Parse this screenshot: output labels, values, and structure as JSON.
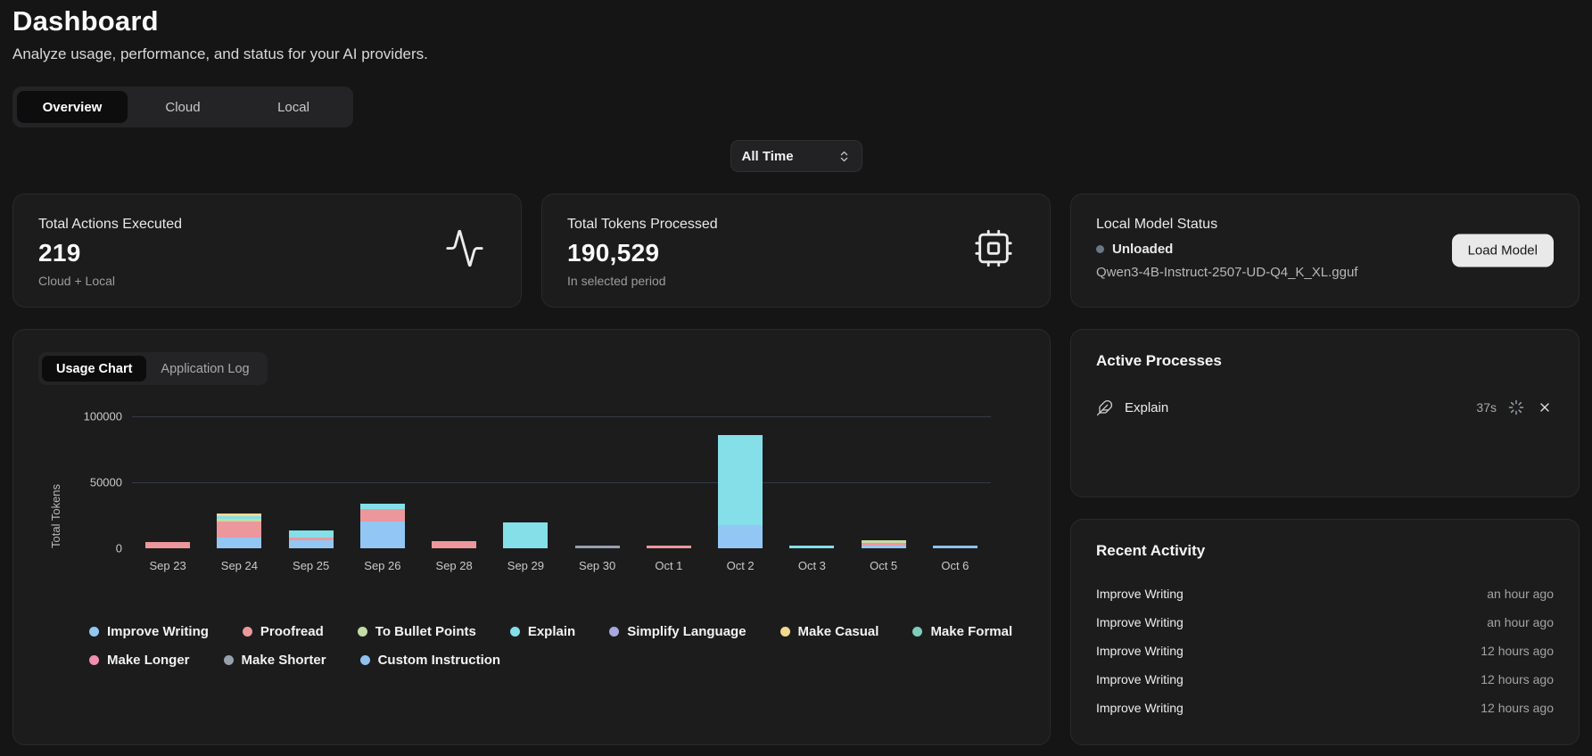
{
  "page": {
    "title": "Dashboard",
    "subtitle": "Analyze usage, performance, and status for your AI providers."
  },
  "tabs": {
    "items": [
      {
        "label": "Overview",
        "active": true
      },
      {
        "label": "Cloud",
        "active": false
      },
      {
        "label": "Local",
        "active": false
      }
    ]
  },
  "filter": {
    "selected": "All Time"
  },
  "stats": {
    "actions": {
      "label": "Total Actions Executed",
      "value": "219",
      "sub": "Cloud + Local",
      "icon": "activity-icon"
    },
    "tokens": {
      "label": "Total Tokens Processed",
      "value": "190,529",
      "sub": "In selected period",
      "icon": "cpu-icon"
    },
    "model": {
      "label": "Local Model Status",
      "status": "Unloaded",
      "file": "Qwen3-4B-Instruct-2507-UD-Q4_K_XL.gguf",
      "button_label": "Load Model"
    }
  },
  "chart_panel": {
    "tabs": [
      {
        "label": "Usage Chart",
        "active": true
      },
      {
        "label": "Application Log",
        "active": false
      }
    ]
  },
  "chart_data": {
    "type": "stacked-bar",
    "title": "Usage Chart",
    "ylabel": "Total Tokens",
    "ylim": [
      0,
      100000
    ],
    "grid": "horizontal",
    "legend_position": "bottom",
    "yticks": [
      {
        "value": 0,
        "label": "0"
      },
      {
        "value": 50000,
        "label": "50000"
      },
      {
        "value": 100000,
        "label": "100000"
      }
    ],
    "categories": [
      "Sep 23",
      "Sep 24",
      "Sep 25",
      "Sep 26",
      "Sep 28",
      "Sep 29",
      "Sep 30",
      "Oct 1",
      "Oct 2",
      "Oct 3",
      "Oct 5",
      "Oct 6"
    ],
    "series": [
      {
        "name": "Improve Writing",
        "color": "#92c7f3",
        "values": [
          0,
          8000,
          6000,
          20000,
          0,
          0,
          0,
          0,
          17500,
          0,
          600,
          0
        ]
      },
      {
        "name": "Proofread",
        "color": "#ec979c",
        "values": [
          4800,
          12000,
          1800,
          9500,
          5500,
          0,
          0,
          1500,
          0,
          0,
          1100,
          0
        ]
      },
      {
        "name": "To Bullet Points",
        "color": "#c3dca4",
        "values": [
          0,
          1000,
          0,
          0,
          0,
          0,
          0,
          0,
          0,
          0,
          800,
          0
        ]
      },
      {
        "name": "Explain",
        "color": "#84dfe8",
        "values": [
          0,
          900,
          5400,
          4500,
          0,
          19500,
          0,
          0,
          68500,
          1300,
          0,
          0
        ]
      },
      {
        "name": "Simplify Language",
        "color": "#a6a9de",
        "values": [
          0,
          0,
          0,
          0,
          0,
          0,
          0,
          0,
          0,
          0,
          0,
          0
        ]
      },
      {
        "name": "Make Casual",
        "color": "#f3d88d",
        "values": [
          0,
          1400,
          0,
          0,
          0,
          0,
          0,
          0,
          0,
          0,
          0,
          0
        ]
      },
      {
        "name": "Make Formal",
        "color": "#7fcdbb",
        "values": [
          0,
          0,
          0,
          0,
          0,
          0,
          0,
          0,
          0,
          0,
          0,
          0
        ]
      },
      {
        "name": "Make Longer",
        "color": "#f18fb0",
        "values": [
          0,
          0,
          0,
          0,
          0,
          0,
          0,
          0,
          0,
          0,
          0,
          0
        ]
      },
      {
        "name": "Make Shorter",
        "color": "#97a1ae",
        "values": [
          0,
          0,
          0,
          0,
          0,
          0,
          1100,
          0,
          0,
          0,
          0,
          0
        ]
      },
      {
        "name": "Custom Instruction",
        "color": "#8fc0ef",
        "values": [
          0,
          0,
          0,
          0,
          0,
          0,
          0,
          0,
          0,
          0,
          0,
          1000
        ]
      }
    ],
    "legend_rows": [
      [
        0,
        1,
        2,
        3,
        4,
        5,
        6
      ],
      [
        7,
        8,
        9
      ]
    ]
  },
  "active_processes": {
    "title": "Active Processes",
    "processes": [
      {
        "name": "Explain",
        "elapsed": "37s",
        "icon": "feather-icon"
      }
    ]
  },
  "recent_activity": {
    "title": "Recent Activity",
    "items": [
      {
        "action": "Improve Writing",
        "time": "an hour ago"
      },
      {
        "action": "Improve Writing",
        "time": "an hour ago"
      },
      {
        "action": "Improve Writing",
        "time": "12 hours ago"
      },
      {
        "action": "Improve Writing",
        "time": "12 hours ago"
      },
      {
        "action": "Improve Writing",
        "time": "12 hours ago"
      }
    ]
  },
  "colors": {
    "background": "#151515",
    "card": "#1c1c1d",
    "card_border": "#2a2a2c",
    "active_tab": "#0d0d0d",
    "gridline": "#343b44",
    "status_dot": "#6b7686",
    "load_button": "#e9e9e9"
  }
}
